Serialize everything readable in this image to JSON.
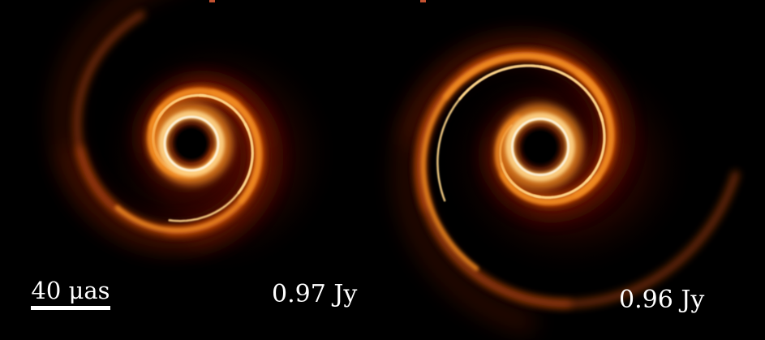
{
  "panels": [
    {
      "flux_label": "0.97 Jy"
    },
    {
      "flux_label": "0.96 Jy"
    }
  ],
  "scale_bar": {
    "label": "40 μas"
  },
  "colors": {
    "background": "#000000",
    "colormap": [
      "#000000",
      "#3a0500",
      "#7a1a00",
      "#c24a08",
      "#f08a20",
      "#ffd58a",
      "#fffbe8"
    ],
    "text": "#ffffff",
    "top_edge_text": "#e8603a"
  }
}
